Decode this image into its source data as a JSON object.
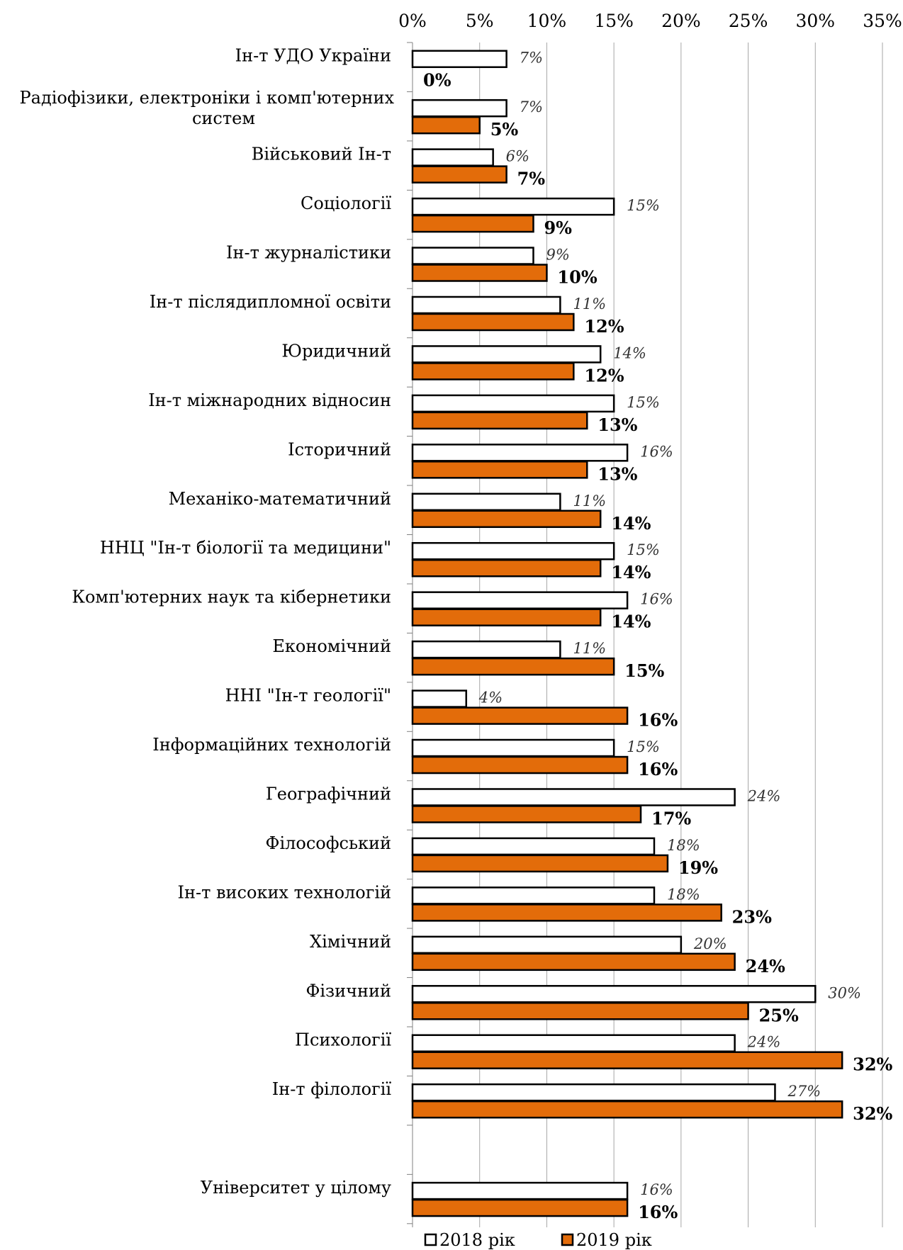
{
  "chart_data": {
    "type": "bar",
    "orientation": "horizontal",
    "x_axis_position": "top",
    "xlim": [
      0,
      35
    ],
    "x_ticks": [
      0,
      5,
      10,
      15,
      20,
      25,
      30,
      35
    ],
    "x_tick_labels": [
      "0%",
      "5%",
      "10%",
      "15%",
      "20%",
      "25%",
      "30%",
      "35%"
    ],
    "grid": true,
    "legend_position": "bottom",
    "categories": [
      [
        "Ін-т УДО України"
      ],
      [
        "Радіофізики, електроніки і комп'ютерних",
        "систем"
      ],
      [
        "Військовий Ін-т"
      ],
      [
        "Соціології"
      ],
      [
        "Ін-т журналістики"
      ],
      [
        "Ін-т післядипломної освіти"
      ],
      [
        "Юридичний"
      ],
      [
        "Ін-т міжнародних відносин"
      ],
      [
        "Історичний"
      ],
      [
        "Механіко-математичний"
      ],
      [
        "ННЦ \"Ін-т біології та медицини\""
      ],
      [
        "Комп'ютерних наук та кібернетики"
      ],
      [
        "Економічний"
      ],
      [
        "ННІ \"Ін-т геології\""
      ],
      [
        "Інформаційних технологій"
      ],
      [
        "Географічний"
      ],
      [
        "Філософський"
      ],
      [
        "Ін-т високих технологій"
      ],
      [
        "Хімічний"
      ],
      [
        "Фізичний"
      ],
      [
        "Психології"
      ],
      [
        "Ін-т філології"
      ],
      [
        ""
      ],
      [
        "Університет у цілому"
      ]
    ],
    "series": [
      {
        "name": "2018 рік",
        "color": "#ffffff",
        "values": [
          7,
          7,
          6,
          15,
          9,
          11,
          14,
          15,
          16,
          11,
          15,
          16,
          11,
          4,
          15,
          24,
          18,
          18,
          20,
          30,
          24,
          27,
          null,
          16
        ],
        "labels": [
          "7%",
          "7%",
          "6%",
          "15%",
          "9%",
          "11%",
          "14%",
          "15%",
          "16%",
          "11%",
          "15%",
          "16%",
          "11%",
          "4%",
          "15%",
          "24%",
          "18%",
          "18%",
          "20%",
          "30%",
          "24%",
          "27%",
          "",
          "16%"
        ]
      },
      {
        "name": "2019 рік",
        "color": "#e36c0a",
        "values": [
          0,
          5,
          7,
          9,
          10,
          12,
          12,
          13,
          13,
          14,
          14,
          14,
          15,
          16,
          16,
          17,
          19,
          23,
          24,
          25,
          32,
          32,
          null,
          16
        ],
        "labels": [
          "0%",
          "5%",
          "7%",
          "9%",
          "10%",
          "12%",
          "12%",
          "13%",
          "13%",
          "14%",
          "14%",
          "14%",
          "15%",
          "16%",
          "16%",
          "17%",
          "19%",
          "23%",
          "24%",
          "25%",
          "32%",
          "32%",
          "",
          "16%"
        ]
      }
    ]
  }
}
